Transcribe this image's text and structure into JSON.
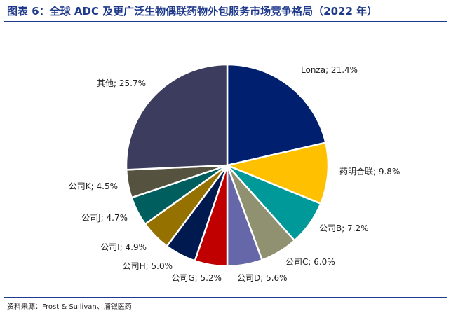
{
  "figure": {
    "title": "图表 6：全球 ADC 及更广泛生物偶联药物外包服务市场竞争格局（2022 年）",
    "source": "资料来源：Frost & Sullivan、浦银医药"
  },
  "chart_data": {
    "type": "pie",
    "title": "",
    "legend": "none",
    "slices": [
      {
        "label": "Lonza",
        "value": 21.4,
        "display": "Lonza; 21.4%",
        "color": "#001f6e"
      },
      {
        "label": "药明合联",
        "value": 9.8,
        "display": "药明合联; 9.8%",
        "color": "#ffc000"
      },
      {
        "label": "公司B",
        "value": 7.2,
        "display": "公司B; 7.2%",
        "color": "#009999"
      },
      {
        "label": "公司C",
        "value": 6.0,
        "display": "公司C; 6.0%",
        "color": "#8f9170"
      },
      {
        "label": "公司D",
        "value": 5.6,
        "display": "公司D; 5.6%",
        "color": "#6667a8"
      },
      {
        "label": "公司G",
        "value": 5.2,
        "display": "公司G; 5.2%",
        "color": "#c00000"
      },
      {
        "label": "公司H",
        "value": 5.0,
        "display": "公司H; 5.0%",
        "color": "#001a4f"
      },
      {
        "label": "公司I",
        "value": 4.9,
        "display": "公司I; 4.9%",
        "color": "#957100"
      },
      {
        "label": "公司J",
        "value": 4.7,
        "display": "公司J; 4.7%",
        "color": "#005e5e"
      },
      {
        "label": "公司K",
        "value": 4.5,
        "display": "公司K; 4.5%",
        "color": "#555240"
      },
      {
        "label": "其他",
        "value": 25.7,
        "display": "其他; 25.7%",
        "color": "#3c3c5e"
      }
    ]
  }
}
